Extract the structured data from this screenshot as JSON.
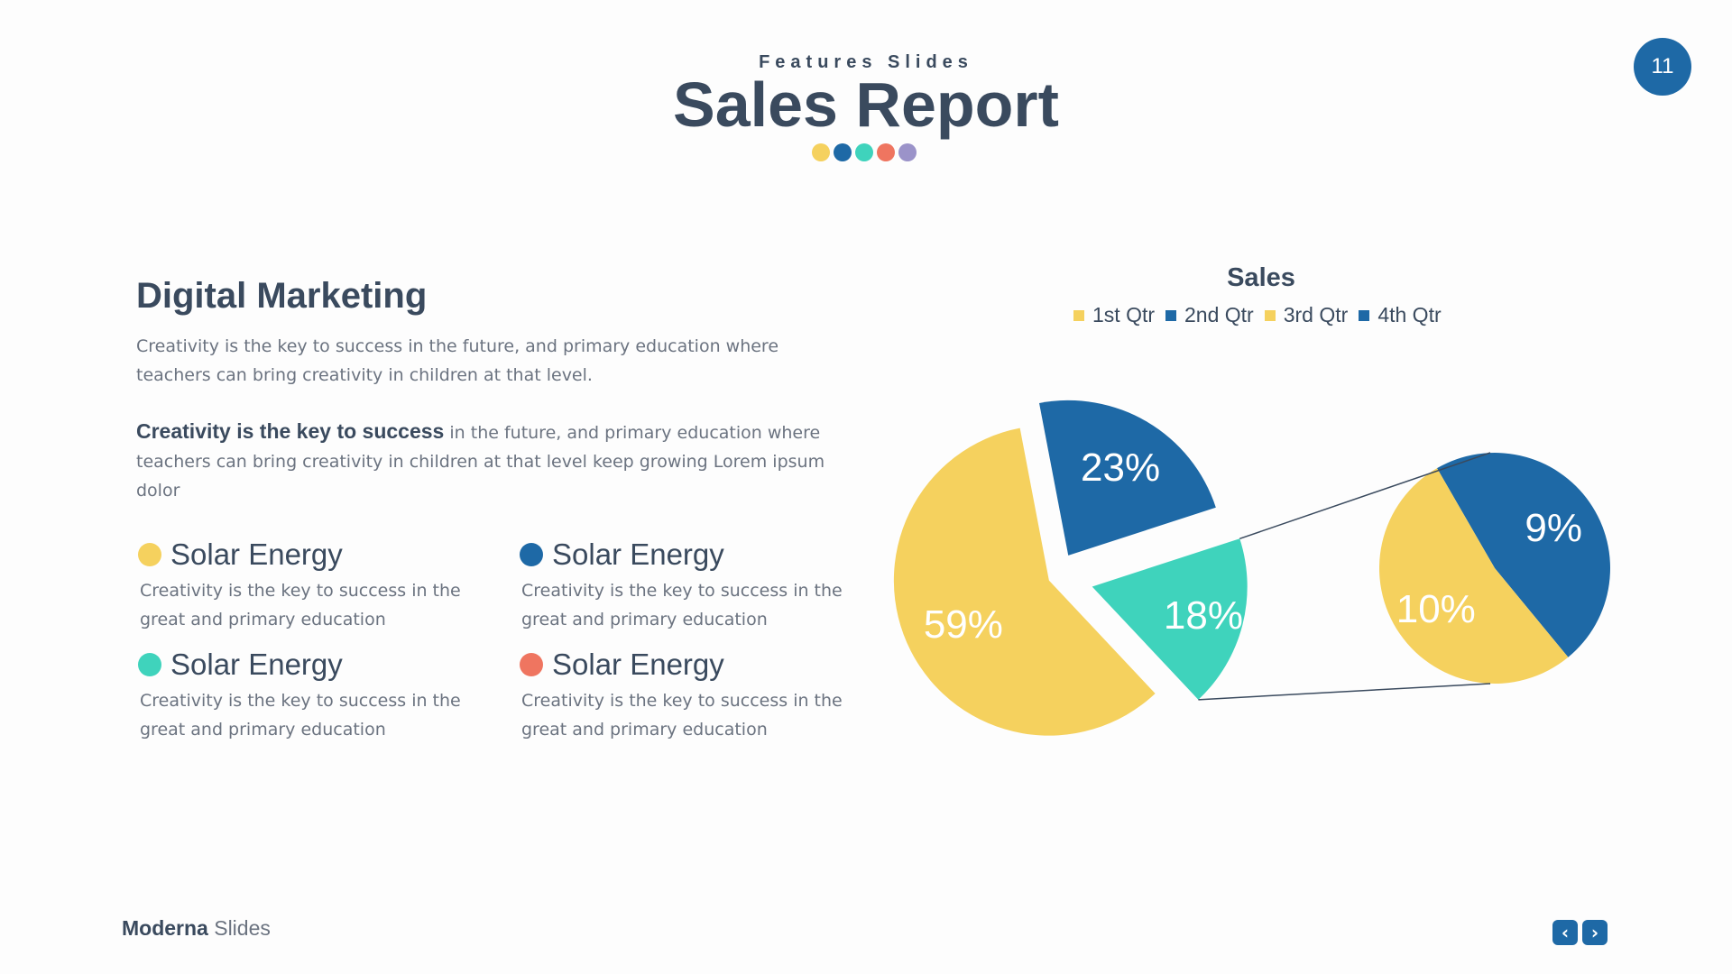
{
  "header": {
    "kicker": "Features Slides",
    "title": "Sales Report",
    "dot_colors": [
      "#f5d15e",
      "#1e69a6",
      "#3fd3bc",
      "#ef7560",
      "#9b93c9"
    ],
    "page_number": "11"
  },
  "main": {
    "heading": "Digital Marketing",
    "paragraph1": "Creativity is the key to success in the future, and primary education where teachers can bring creativity in children at that level.",
    "paragraph2_bold": "Creativity is the key to success",
    "paragraph2_rest": " in the future, and primary education where teachers can bring creativity in children at that level keep growing Lorem ipsum dolor",
    "features": [
      {
        "title": "Solar Energy",
        "description": "Creativity is the key to success in the great and primary education",
        "color": "#f5d15e"
      },
      {
        "title": "Solar Energy",
        "description": "Creativity is the key to success in the great and primary education",
        "color": "#1e69a6"
      },
      {
        "title": "Solar Energy",
        "description": "Creativity is the key to success in the great and primary education",
        "color": "#3fd3bc"
      },
      {
        "title": "Solar Energy",
        "description": "Creativity is the key to success in the great and primary education",
        "color": "#ef7560"
      }
    ]
  },
  "chart_data": {
    "type": "pie",
    "variant": "pie-of-pie",
    "title": "Sales",
    "legend": [
      "1st Qtr",
      "2nd Qtr",
      "3rd Qtr",
      "4th Qtr"
    ],
    "legend_colors": [
      "#f5d15e",
      "#1e69a6",
      "#f5d15e",
      "#1e69a6"
    ],
    "legend_position": "top",
    "main_pie": {
      "slices": [
        {
          "label": "59%",
          "value": 59,
          "color": "#f5d15e"
        },
        {
          "label": "23%",
          "value": 23,
          "color": "#1e69a6"
        },
        {
          "label": "18%",
          "value": 18,
          "color": "#3fd3bc"
        }
      ]
    },
    "secondary_pie": {
      "slices": [
        {
          "label": "9%",
          "value": 9,
          "color": "#1e69a6"
        },
        {
          "label": "10%",
          "value": 10,
          "color": "#f5d15e"
        }
      ]
    }
  },
  "footer": {
    "brand_bold": "Moderna",
    "brand_light": " Slides",
    "prev_icon": "chevron-left-icon",
    "next_icon": "chevron-right-icon"
  }
}
